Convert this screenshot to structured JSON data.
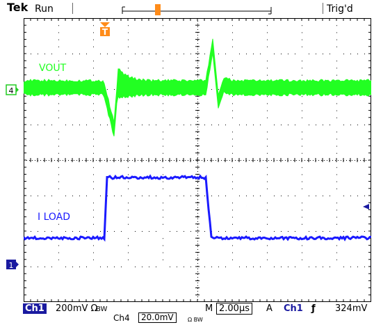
{
  "header": {
    "brand": "Tek",
    "acquisition_state": "Run",
    "trigger_status": "Trig'd",
    "trigger_marker": "T"
  },
  "traces": {
    "vout_label": "VOUT",
    "iload_label": "I LOAD",
    "ch4_marker": "4",
    "ch1_marker": "1"
  },
  "footer": {
    "ch1_badge": "Ch1",
    "ch1_scale": "200mV Ω",
    "ch1_suffix": "BW",
    "m_label": "M",
    "timebase": "2.00µs",
    "acq_mode": "A",
    "trigger_source": "Ch1",
    "trigger_slope_icon": "ƒ",
    "trigger_level": "324mV",
    "ch4_badge": "Ch4",
    "ch4_scale": "20.0mV",
    "ch4_suffix": "Ω BW"
  },
  "colors": {
    "vout": "#22ff22",
    "iload": "#1a1aff",
    "grid": "#000000",
    "trigger": "#ff8c1a"
  },
  "chart_data": {
    "type": "line",
    "grid": true,
    "divisions": {
      "x": 10,
      "y": 8
    },
    "series": [
      {
        "name": "VOUT"
      },
      {
        "name": "I LOAD"
      }
    ]
  }
}
